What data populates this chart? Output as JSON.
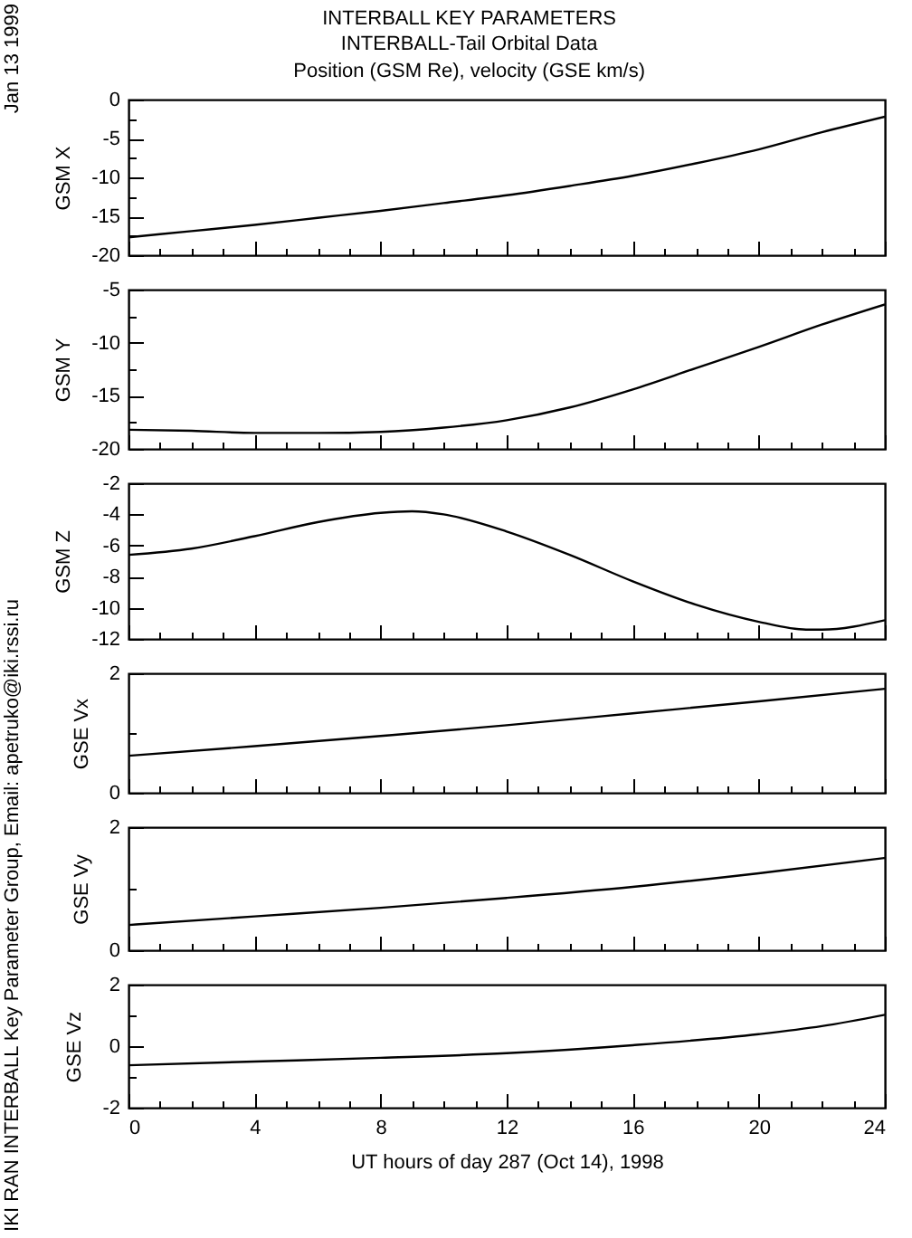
{
  "chart_data": [
    {
      "type": "line",
      "title": "INTERBALL KEY PARAMETERS",
      "subtitle": "INTERBALL-Tail Orbital Data\nPosition (GSM Re), velocity (GSE km/s)",
      "annotations": [
        "Jan 13 1999",
        "IKI RAN INTERBALL Key Parameter Group, Email: apetruko@iki.rssi.ru"
      ],
      "ylabel": "GSM X",
      "tick_labels": "y",
      "x": [
        0,
        2,
        4,
        6,
        8,
        10,
        12,
        14,
        16,
        18,
        20,
        22,
        24
      ],
      "series": [
        {
          "color": "#000000",
          "values": [
            -17.7,
            -16.9,
            -16.1,
            -15.2,
            -14.3,
            -13.3,
            -12.3,
            -11.1,
            -9.8,
            -8.2,
            -6.4,
            -4.2,
            -2.2
          ]
        }
      ],
      "xlim": [
        0,
        24
      ],
      "xticks": [
        0,
        {
          "value": 1,
          "label": null
        },
        {
          "value": 2,
          "label": null
        },
        {
          "value": 3,
          "label": null
        },
        4,
        {
          "value": 5,
          "label": null
        },
        {
          "value": 6,
          "label": null
        },
        {
          "value": 7,
          "label": null
        },
        8,
        {
          "value": 9,
          "label": null
        },
        {
          "value": 10,
          "label": null
        },
        {
          "value": 11,
          "label": null
        },
        12,
        {
          "value": 13,
          "label": null
        },
        {
          "value": 14,
          "label": null
        },
        {
          "value": 15,
          "label": null
        },
        16,
        {
          "value": 17,
          "label": null
        },
        {
          "value": 18,
          "label": null
        },
        {
          "value": 19,
          "label": null
        },
        20,
        {
          "value": 21,
          "label": null
        },
        {
          "value": 22,
          "label": null
        },
        {
          "value": 23,
          "label": null
        },
        24
      ],
      "ylim": [
        -20,
        0
      ],
      "yticks": [
        -20,
        {
          "value": -17.5,
          "label": null
        },
        -15,
        {
          "value": -12.5,
          "label": null
        },
        -10,
        {
          "value": -7.5,
          "label": null
        },
        -5,
        {
          "value": -2.5,
          "label": null
        },
        0
      ]
    },
    {
      "type": "line",
      "ylabel": "GSM Y",
      "tick_labels": "y",
      "x": [
        0,
        2,
        4,
        6,
        8,
        10,
        12,
        14,
        16,
        18,
        20,
        22,
        24
      ],
      "series": [
        {
          "color": "#000000",
          "values": [
            -18.2,
            -18.3,
            -18.5,
            -18.5,
            -18.4,
            -18.0,
            -17.3,
            -16.1,
            -14.4,
            -12.4,
            -10.4,
            -8.3,
            -6.4
          ]
        }
      ],
      "xlim": [
        0,
        24
      ],
      "xticks": [
        0,
        {
          "value": 1,
          "label": null
        },
        {
          "value": 2,
          "label": null
        },
        {
          "value": 3,
          "label": null
        },
        4,
        {
          "value": 5,
          "label": null
        },
        {
          "value": 6,
          "label": null
        },
        {
          "value": 7,
          "label": null
        },
        8,
        {
          "value": 9,
          "label": null
        },
        {
          "value": 10,
          "label": null
        },
        {
          "value": 11,
          "label": null
        },
        12,
        {
          "value": 13,
          "label": null
        },
        {
          "value": 14,
          "label": null
        },
        {
          "value": 15,
          "label": null
        },
        16,
        {
          "value": 17,
          "label": null
        },
        {
          "value": 18,
          "label": null
        },
        {
          "value": 19,
          "label": null
        },
        20,
        {
          "value": 21,
          "label": null
        },
        {
          "value": 22,
          "label": null
        },
        {
          "value": 23,
          "label": null
        },
        24
      ],
      "ylim": [
        -20,
        -5
      ],
      "yticks": [
        -20,
        {
          "value": -17.5,
          "label": null
        },
        -15,
        {
          "value": -12.5,
          "label": null
        },
        -10,
        {
          "value": -7.5,
          "label": null
        },
        -5
      ]
    },
    {
      "type": "line",
      "ylabel": "GSM Z",
      "tick_labels": "y",
      "x": [
        0,
        2,
        4,
        6,
        8,
        9,
        10,
        12,
        14,
        16,
        18,
        20,
        21.5,
        22,
        24
      ],
      "series": [
        {
          "color": "#000000",
          "values": [
            -6.6,
            -6.2,
            -5.4,
            -4.5,
            -3.9,
            -3.8,
            -4.0,
            -5.1,
            -6.6,
            -8.3,
            -9.8,
            -10.9,
            -11.4,
            -11.4,
            -10.8
          ]
        }
      ],
      "xlim": [
        0,
        24
      ],
      "xticks": [
        0,
        {
          "value": 1,
          "label": null
        },
        {
          "value": 2,
          "label": null
        },
        {
          "value": 3,
          "label": null
        },
        4,
        {
          "value": 5,
          "label": null
        },
        {
          "value": 6,
          "label": null
        },
        {
          "value": 7,
          "label": null
        },
        8,
        {
          "value": 9,
          "label": null
        },
        {
          "value": 10,
          "label": null
        },
        {
          "value": 11,
          "label": null
        },
        12,
        {
          "value": 13,
          "label": null
        },
        {
          "value": 14,
          "label": null
        },
        {
          "value": 15,
          "label": null
        },
        16,
        {
          "value": 17,
          "label": null
        },
        {
          "value": 18,
          "label": null
        },
        {
          "value": 19,
          "label": null
        },
        20,
        {
          "value": 21,
          "label": null
        },
        {
          "value": 22,
          "label": null
        },
        {
          "value": 23,
          "label": null
        },
        24
      ],
      "ylim": [
        -12,
        -2
      ],
      "yticks": [
        -12,
        -10,
        -8,
        -6,
        -4,
        -2
      ]
    },
    {
      "type": "line",
      "ylabel": "GSE Vx",
      "tick_labels": "y",
      "x": [
        0,
        4,
        8,
        12,
        16,
        20,
        24
      ],
      "series": [
        {
          "color": "#000000",
          "values": [
            0.62,
            0.78,
            0.95,
            1.13,
            1.33,
            1.53,
            1.74
          ]
        }
      ],
      "xlim": [
        0,
        24
      ],
      "xticks": [
        0,
        {
          "value": 1,
          "label": null
        },
        {
          "value": 2,
          "label": null
        },
        {
          "value": 3,
          "label": null
        },
        4,
        {
          "value": 5,
          "label": null
        },
        {
          "value": 6,
          "label": null
        },
        {
          "value": 7,
          "label": null
        },
        8,
        {
          "value": 9,
          "label": null
        },
        {
          "value": 10,
          "label": null
        },
        {
          "value": 11,
          "label": null
        },
        12,
        {
          "value": 13,
          "label": null
        },
        {
          "value": 14,
          "label": null
        },
        {
          "value": 15,
          "label": null
        },
        16,
        {
          "value": 17,
          "label": null
        },
        {
          "value": 18,
          "label": null
        },
        {
          "value": 19,
          "label": null
        },
        20,
        {
          "value": 21,
          "label": null
        },
        {
          "value": 22,
          "label": null
        },
        {
          "value": 23,
          "label": null
        },
        24
      ],
      "ylim": [
        0,
        2
      ],
      "yticks": [
        0,
        {
          "value": 1,
          "label": null
        },
        2
      ]
    },
    {
      "type": "line",
      "ylabel": "GSE Vy",
      "tick_labels": "y",
      "x": [
        0,
        4,
        8,
        12,
        16,
        20,
        24
      ],
      "series": [
        {
          "color": "#000000",
          "values": [
            0.41,
            0.55,
            0.69,
            0.85,
            1.03,
            1.25,
            1.5
          ]
        }
      ],
      "xlim": [
        0,
        24
      ],
      "xticks": [
        0,
        {
          "value": 1,
          "label": null
        },
        {
          "value": 2,
          "label": null
        },
        {
          "value": 3,
          "label": null
        },
        4,
        {
          "value": 5,
          "label": null
        },
        {
          "value": 6,
          "label": null
        },
        {
          "value": 7,
          "label": null
        },
        8,
        {
          "value": 9,
          "label": null
        },
        {
          "value": 10,
          "label": null
        },
        {
          "value": 11,
          "label": null
        },
        12,
        {
          "value": 13,
          "label": null
        },
        {
          "value": 14,
          "label": null
        },
        {
          "value": 15,
          "label": null
        },
        16,
        {
          "value": 17,
          "label": null
        },
        {
          "value": 18,
          "label": null
        },
        {
          "value": 19,
          "label": null
        },
        20,
        {
          "value": 21,
          "label": null
        },
        {
          "value": 22,
          "label": null
        },
        {
          "value": 23,
          "label": null
        },
        24
      ],
      "ylim": [
        0,
        2
      ],
      "yticks": [
        0,
        {
          "value": 1,
          "label": null
        },
        2
      ]
    },
    {
      "type": "line",
      "ylabel": "GSE Vz",
      "xlabel": "UT hours of day 287 (Oct 14), 1998",
      "x": [
        0,
        4,
        8,
        12,
        16,
        20,
        22,
        24
      ],
      "series": [
        {
          "color": "#000000",
          "values": [
            -0.62,
            -0.5,
            -0.38,
            -0.23,
            0.03,
            0.39,
            0.65,
            1.02
          ]
        }
      ],
      "xlim": [
        0,
        24
      ],
      "xticks": [
        0,
        {
          "value": 1,
          "label": null
        },
        {
          "value": 2,
          "label": null
        },
        {
          "value": 3,
          "label": null
        },
        4,
        {
          "value": 5,
          "label": null
        },
        {
          "value": 6,
          "label": null
        },
        {
          "value": 7,
          "label": null
        },
        8,
        {
          "value": 9,
          "label": null
        },
        {
          "value": 10,
          "label": null
        },
        {
          "value": 11,
          "label": null
        },
        12,
        {
          "value": 13,
          "label": null
        },
        {
          "value": 14,
          "label": null
        },
        {
          "value": 15,
          "label": null
        },
        16,
        {
          "value": 17,
          "label": null
        },
        {
          "value": 18,
          "label": null
        },
        {
          "value": 19,
          "label": null
        },
        20,
        {
          "value": 21,
          "label": null
        },
        {
          "value": 22,
          "label": null
        },
        {
          "value": 23,
          "label": null
        },
        24
      ],
      "ylim": [
        -2,
        2
      ],
      "yticks": [
        -2,
        {
          "value": -1,
          "label": null
        },
        0,
        {
          "value": 1,
          "label": null
        },
        2
      ]
    }
  ]
}
